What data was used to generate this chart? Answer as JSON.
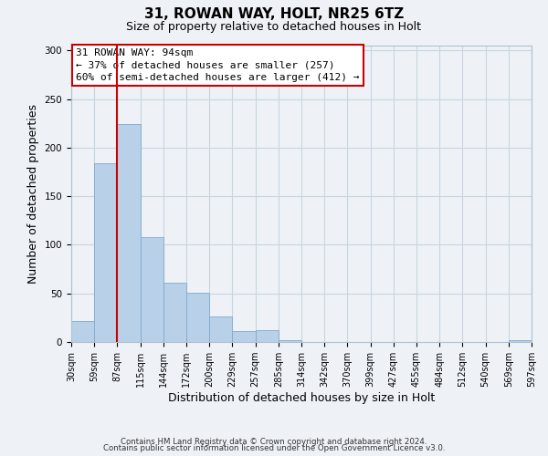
{
  "title": "31, ROWAN WAY, HOLT, NR25 6TZ",
  "subtitle": "Size of property relative to detached houses in Holt",
  "xlabel": "Distribution of detached houses by size in Holt",
  "ylabel": "Number of detached properties",
  "bar_values": [
    22,
    184,
    224,
    108,
    61,
    51,
    26,
    11,
    12,
    2,
    0,
    0,
    0,
    0,
    0,
    0,
    0,
    0,
    0,
    2
  ],
  "bin_labels": [
    "30sqm",
    "59sqm",
    "87sqm",
    "115sqm",
    "144sqm",
    "172sqm",
    "200sqm",
    "229sqm",
    "257sqm",
    "285sqm",
    "314sqm",
    "342sqm",
    "370sqm",
    "399sqm",
    "427sqm",
    "455sqm",
    "484sqm",
    "512sqm",
    "540sqm",
    "569sqm",
    "597sqm"
  ],
  "bar_color": "#b8d0e8",
  "bar_edge_color": "#7faacf",
  "vline_color": "#cc0000",
  "ylim": [
    0,
    305
  ],
  "yticks": [
    0,
    50,
    100,
    150,
    200,
    250,
    300
  ],
  "annotation_title": "31 ROWAN WAY: 94sqm",
  "annotation_line1": "← 37% of detached houses are smaller (257)",
  "annotation_line2": "60% of semi-detached houses are larger (412) →",
  "annotation_box_color": "#ffffff",
  "annotation_box_edge": "#cc0000",
  "footer_line1": "Contains HM Land Registry data © Crown copyright and database right 2024.",
  "footer_line2": "Contains public sector information licensed under the Open Government Licence v3.0.",
  "background_color": "#eef2f7",
  "grid_color": "#c8d4e0"
}
